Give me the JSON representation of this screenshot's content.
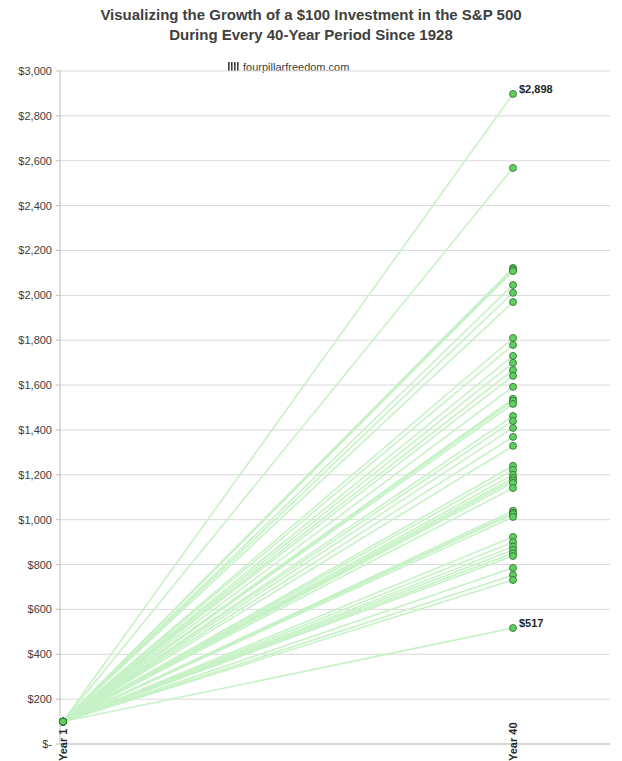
{
  "chart_data": {
    "type": "line",
    "title": "Visualizing the Growth of a $100 Investment in the S&P 500\nDuring Every 40-Year Period Since 1928",
    "subtitle": "fourpillarfreedom.com",
    "categories": [
      "Year 1",
      "Year 40"
    ],
    "color": "#c6f2c6",
    "marker": "circle",
    "grid": true,
    "ylim": [
      0,
      3000
    ],
    "yticks": [
      {
        "value": 0,
        "label": "$-"
      },
      {
        "value": 200,
        "label": "$200"
      },
      {
        "value": 400,
        "label": "$400"
      },
      {
        "value": 600,
        "label": "$600"
      },
      {
        "value": 800,
        "label": "$800"
      },
      {
        "value": 1000,
        "label": "$1,000"
      },
      {
        "value": 1200,
        "label": "$1,200"
      },
      {
        "value": 1400,
        "label": "$1,400"
      },
      {
        "value": 1600,
        "label": "$1,600"
      },
      {
        "value": 1800,
        "label": "$1,800"
      },
      {
        "value": 2000,
        "label": "$2,000"
      },
      {
        "value": 2200,
        "label": "$2,200"
      },
      {
        "value": 2400,
        "label": "$2,400"
      },
      {
        "value": 2600,
        "label": "$2,600"
      },
      {
        "value": 2800,
        "label": "$2,800"
      },
      {
        "value": 3000,
        "label": "$3,000"
      }
    ],
    "series": [
      {
        "values": [
          100,
          2898
        ],
        "value_labels": [
          null,
          "$2,898"
        ]
      },
      {
        "values": [
          100,
          2568
        ]
      },
      {
        "values": [
          100,
          2122
        ]
      },
      {
        "values": [
          100,
          2116
        ]
      },
      {
        "values": [
          100,
          2108
        ]
      },
      {
        "values": [
          100,
          2046
        ]
      },
      {
        "values": [
          100,
          2011
        ]
      },
      {
        "values": [
          100,
          1970
        ]
      },
      {
        "values": [
          100,
          1810
        ]
      },
      {
        "values": [
          100,
          1779
        ]
      },
      {
        "values": [
          100,
          1730
        ]
      },
      {
        "values": [
          100,
          1699
        ]
      },
      {
        "values": [
          100,
          1667
        ]
      },
      {
        "values": [
          100,
          1641
        ]
      },
      {
        "values": [
          100,
          1592
        ]
      },
      {
        "values": [
          100,
          1539
        ]
      },
      {
        "values": [
          100,
          1530
        ]
      },
      {
        "values": [
          100,
          1516
        ]
      },
      {
        "values": [
          100,
          1462
        ]
      },
      {
        "values": [
          100,
          1440
        ]
      },
      {
        "values": [
          100,
          1409
        ]
      },
      {
        "values": [
          100,
          1369
        ]
      },
      {
        "values": [
          100,
          1329
        ]
      },
      {
        "values": [
          100,
          1240
        ]
      },
      {
        "values": [
          100,
          1222
        ]
      },
      {
        "values": [
          100,
          1200
        ]
      },
      {
        "values": [
          100,
          1186
        ]
      },
      {
        "values": [
          100,
          1175
        ]
      },
      {
        "values": [
          100,
          1164
        ]
      },
      {
        "values": [
          100,
          1141
        ]
      },
      {
        "values": [
          100,
          1040
        ]
      },
      {
        "values": [
          100,
          1030
        ]
      },
      {
        "values": [
          100,
          1025
        ]
      },
      {
        "values": [
          100,
          1012
        ]
      },
      {
        "values": [
          100,
          923
        ]
      },
      {
        "values": [
          100,
          900
        ]
      },
      {
        "values": [
          100,
          880
        ]
      },
      {
        "values": [
          100,
          865
        ]
      },
      {
        "values": [
          100,
          850
        ]
      },
      {
        "values": [
          100,
          838
        ]
      },
      {
        "values": [
          100,
          785
        ]
      },
      {
        "values": [
          100,
          753
        ]
      },
      {
        "values": [
          100,
          731
        ]
      },
      {
        "values": [
          100,
          517
        ],
        "value_labels": [
          null,
          "$517"
        ]
      }
    ]
  }
}
